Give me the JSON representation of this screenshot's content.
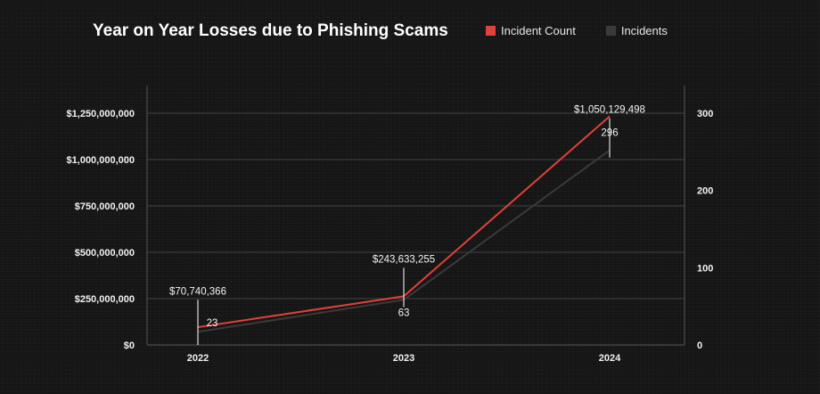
{
  "chart_data": {
    "type": "line",
    "title": "Year on Year Losses due to Phishing Scams",
    "categories": [
      "2022",
      "2023",
      "2024"
    ],
    "legend": {
      "placement": "top-right"
    },
    "series": [
      {
        "name": "Incident Count",
        "axis": "right",
        "color": "#e0413a",
        "values": [
          23,
          63,
          296
        ],
        "labels": [
          "23",
          "63",
          "296"
        ]
      },
      {
        "name": "Incidents",
        "axis": "left",
        "color": "#3a3a3a",
        "values": [
          70740366,
          243633255,
          1050129498
        ],
        "labels": [
          "$70,740,366",
          "$243,633,255",
          "$1,050,129,498"
        ]
      }
    ],
    "y_left": {
      "ylim": [
        0,
        1250000000
      ],
      "ticks": [
        0,
        250000000,
        500000000,
        750000000,
        1000000000,
        1250000000
      ],
      "tick_labels": [
        "$0",
        "$250,000,000",
        "$500,000,000",
        "$750,000,000",
        "$1,000,000,000",
        "$1,250,000,000"
      ]
    },
    "y_right": {
      "ylim": [
        0,
        300
      ],
      "ticks": [
        0,
        100,
        200,
        300
      ],
      "tick_labels": [
        "0",
        "100",
        "200",
        "300"
      ]
    },
    "grid": true
  }
}
